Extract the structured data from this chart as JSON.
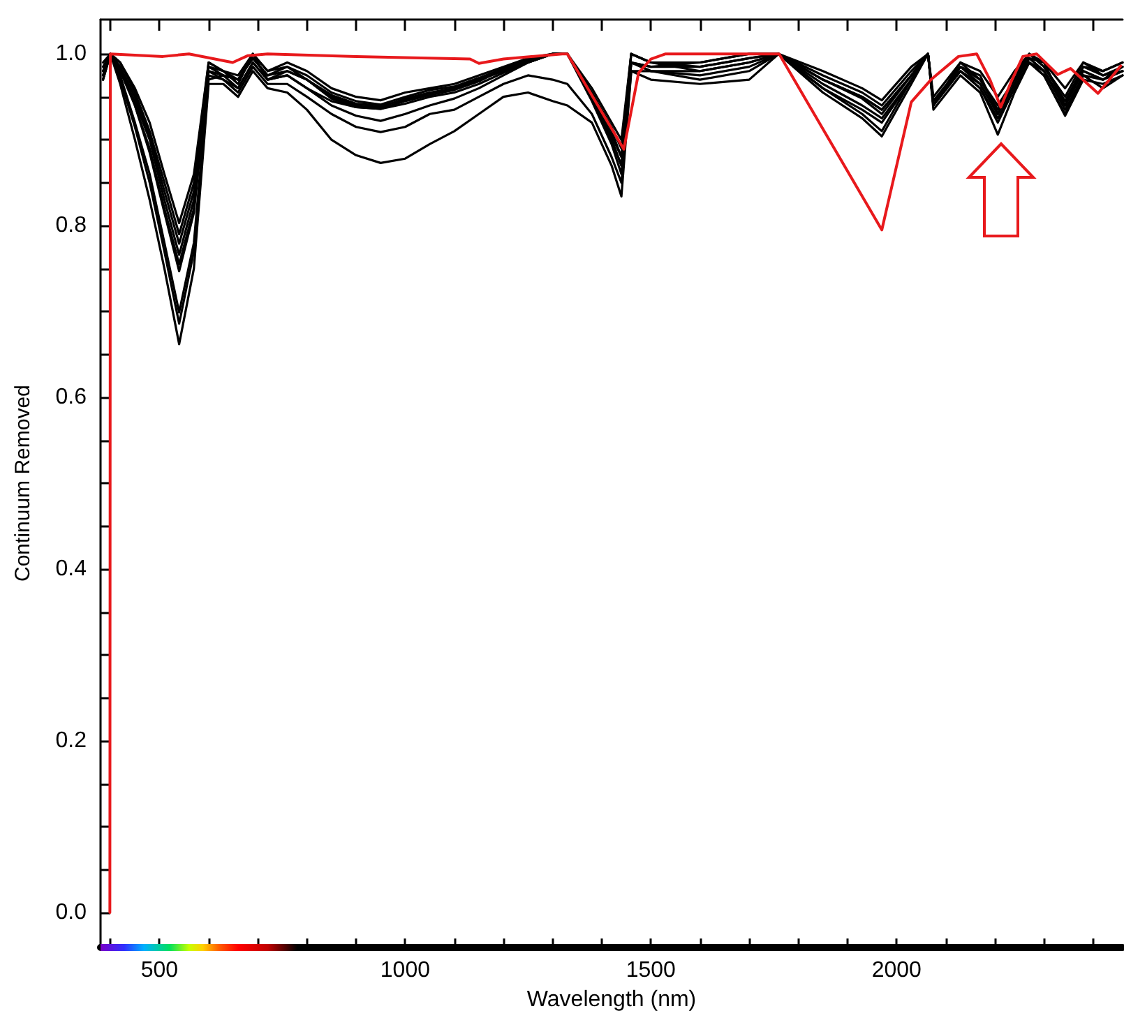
{
  "chart_data": {
    "type": "line",
    "xlabel": "Wavelength (nm)",
    "ylabel": "Continuum Removed",
    "x": [
      385,
      400,
      420,
      450,
      480,
      510,
      540,
      570,
      600,
      630,
      660,
      690,
      720,
      760,
      800,
      850,
      900,
      950,
      1000,
      1050,
      1100,
      1150,
      1200,
      1250,
      1300,
      1330,
      1380,
      1420,
      1440,
      1460,
      1500,
      1600,
      1700,
      1760,
      1850,
      1930,
      1970,
      2030,
      2064,
      2075,
      2130,
      2170,
      2206,
      2240,
      2270,
      2300,
      2343,
      2380,
      2420,
      2460
    ],
    "series": [
      {
        "color": "#000000",
        "values": [
          0.98,
          1.0,
          0.99,
          0.96,
          0.92,
          0.86,
          0.803,
          0.86,
          0.99,
          0.98,
          0.97,
          1.0,
          0.98,
          0.99,
          0.98,
          0.96,
          0.95,
          0.946,
          0.955,
          0.96,
          0.965,
          0.975,
          0.985,
          0.995,
          1.0,
          1.0,
          0.96,
          0.92,
          0.9,
          1.0,
          0.99,
          0.99,
          1.0,
          1.0,
          0.98,
          0.96,
          0.946,
          0.985,
          1.0,
          0.95,
          0.99,
          0.98,
          0.95,
          0.98,
          1.0,
          0.99,
          0.96,
          0.99,
          0.98,
          0.99
        ]
      },
      {
        "color": "#000000",
        "values": [
          0.97,
          1.0,
          0.99,
          0.955,
          0.91,
          0.85,
          0.79,
          0.85,
          0.99,
          0.98,
          0.975,
          1.0,
          0.98,
          0.985,
          0.975,
          0.955,
          0.945,
          0.941,
          0.95,
          0.958,
          0.962,
          0.972,
          0.983,
          0.994,
          1.0,
          1.0,
          0.955,
          0.91,
          0.88,
          1.0,
          0.99,
          0.985,
          0.995,
          1.0,
          0.975,
          0.955,
          0.94,
          0.98,
          1.0,
          0.945,
          0.985,
          0.975,
          0.93,
          0.975,
          1.0,
          0.985,
          0.95,
          0.99,
          0.975,
          0.985
        ]
      },
      {
        "color": "#000000",
        "values": [
          0.99,
          1.0,
          0.985,
          0.95,
          0.905,
          0.84,
          0.779,
          0.84,
          0.985,
          0.975,
          0.97,
          0.995,
          0.975,
          0.985,
          0.97,
          0.95,
          0.94,
          0.938,
          0.948,
          0.955,
          0.96,
          0.97,
          0.98,
          0.993,
          1.0,
          1.0,
          0.95,
          0.9,
          0.87,
          0.99,
          0.985,
          0.99,
          1.0,
          1.0,
          0.97,
          0.95,
          0.935,
          0.975,
          1.0,
          0.94,
          0.99,
          0.97,
          0.94,
          0.97,
          0.995,
          0.99,
          0.94,
          0.985,
          0.98,
          0.99
        ]
      },
      {
        "color": "#000000",
        "values": [
          0.975,
          1.0,
          0.98,
          0.945,
          0.9,
          0.83,
          0.766,
          0.83,
          0.985,
          0.98,
          0.965,
          1.0,
          0.97,
          0.98,
          0.97,
          0.948,
          0.938,
          0.936,
          0.945,
          0.952,
          0.958,
          0.968,
          0.982,
          0.992,
          1.0,
          1.0,
          0.955,
          0.915,
          0.89,
          1.0,
          0.99,
          0.98,
          0.99,
          1.0,
          0.97,
          0.948,
          0.93,
          0.975,
          1.0,
          0.94,
          0.985,
          0.97,
          0.935,
          0.97,
          1.0,
          0.985,
          0.945,
          0.985,
          0.975,
          0.98
        ]
      },
      {
        "color": "#000000",
        "values": [
          0.985,
          1.0,
          0.985,
          0.94,
          0.89,
          0.82,
          0.755,
          0.82,
          0.98,
          0.975,
          0.97,
          0.995,
          0.975,
          0.98,
          0.97,
          0.952,
          0.942,
          0.94,
          0.946,
          0.954,
          0.96,
          0.97,
          0.98,
          0.99,
          1.0,
          1.0,
          0.945,
          0.895,
          0.86,
          0.99,
          0.985,
          0.985,
          0.995,
          1.0,
          0.965,
          0.94,
          0.925,
          0.97,
          1.0,
          0.945,
          0.98,
          0.965,
          0.93,
          0.965,
          0.995,
          0.98,
          0.94,
          0.98,
          0.97,
          0.985
        ]
      },
      {
        "color": "#000000",
        "values": [
          0.97,
          1.0,
          0.98,
          0.94,
          0.885,
          0.815,
          0.747,
          0.815,
          0.98,
          0.97,
          0.96,
          0.99,
          0.97,
          0.975,
          0.96,
          0.94,
          0.928,
          0.922,
          0.93,
          0.94,
          0.948,
          0.96,
          0.975,
          0.99,
          1.0,
          1.0,
          0.95,
          0.905,
          0.88,
          0.99,
          0.98,
          0.975,
          0.985,
          1.0,
          0.96,
          0.93,
          0.91,
          0.97,
          1.0,
          0.94,
          0.98,
          0.96,
          0.925,
          0.96,
          0.99,
          0.98,
          0.935,
          0.975,
          0.97,
          0.98
        ]
      },
      {
        "color": "#000000",
        "values": [
          0.98,
          1.0,
          0.975,
          0.92,
          0.86,
          0.78,
          0.699,
          0.78,
          0.975,
          0.97,
          0.955,
          0.985,
          0.965,
          0.965,
          0.95,
          0.93,
          0.915,
          0.909,
          0.915,
          0.93,
          0.935,
          0.95,
          0.965,
          0.975,
          0.97,
          0.965,
          0.93,
          0.88,
          0.85,
          0.98,
          0.98,
          0.97,
          0.98,
          1.0,
          0.955,
          0.925,
          0.904,
          0.965,
          1.0,
          0.935,
          0.975,
          0.955,
          0.906,
          0.955,
          0.99,
          0.975,
          0.928,
          0.97,
          0.965,
          0.975
        ]
      },
      {
        "color": "#000000",
        "values": [
          0.975,
          1.0,
          0.97,
          0.915,
          0.85,
          0.77,
          0.686,
          0.77,
          0.97,
          0.975,
          0.96,
          0.99,
          0.97,
          0.975,
          0.96,
          0.945,
          0.938,
          0.936,
          0.942,
          0.95,
          0.955,
          0.965,
          0.978,
          0.99,
          1.0,
          1.0,
          0.95,
          0.9,
          0.87,
          0.99,
          0.98,
          0.98,
          0.99,
          1.0,
          0.97,
          0.95,
          0.935,
          0.975,
          1.0,
          0.945,
          0.985,
          0.965,
          0.93,
          0.965,
          0.995,
          0.98,
          0.94,
          0.98,
          0.97,
          0.98
        ]
      },
      {
        "color": "#000000",
        "values": [
          0.97,
          1.0,
          0.965,
          0.9,
          0.83,
          0.75,
          0.662,
          0.75,
          0.965,
          0.965,
          0.95,
          0.98,
          0.96,
          0.955,
          0.935,
          0.9,
          0.882,
          0.873,
          0.878,
          0.895,
          0.91,
          0.93,
          0.95,
          0.955,
          0.945,
          0.94,
          0.92,
          0.87,
          0.834,
          0.98,
          0.97,
          0.965,
          0.97,
          1.0,
          0.96,
          0.935,
          0.92,
          0.97,
          1.0,
          0.94,
          0.98,
          0.96,
          0.92,
          0.96,
          0.99,
          0.975,
          0.93,
          0.975,
          0.96,
          0.975
        ]
      },
      {
        "color": "#e8191c",
        "x": [
          399,
          400,
          507,
          560,
          649,
          680,
          720,
          900,
          1132,
          1150,
          1200,
          1320,
          1330,
          1445,
          1475,
          1500,
          1530,
          1600,
          1761,
          1970,
          2030,
          2070,
          2126,
          2163,
          2190,
          2212,
          2235,
          2257,
          2285,
          2328,
          2354,
          2410,
          2456
        ],
        "values": [
          0,
          1.0,
          0.997,
          1.0,
          0.99,
          0.998,
          1.0,
          0.997,
          0.994,
          0.989,
          0.994,
          1.0,
          1.0,
          0.889,
          0.978,
          0.994,
          1.0,
          1.0,
          1.0,
          0.795,
          0.944,
          0.97,
          0.997,
          1.0,
          0.97,
          0.938,
          0.97,
          0.997,
          1.0,
          0.976,
          0.983,
          0.954,
          0.986
        ]
      }
    ],
    "xlim": [
      380,
      2460
    ],
    "xticks": [
      {
        "value": 400,
        "label": null
      },
      500,
      {
        "value": 600,
        "label": null
      },
      {
        "value": 700,
        "label": null
      },
      {
        "value": 800,
        "label": null
      },
      {
        "value": 900,
        "label": null
      },
      1000,
      {
        "value": 1100,
        "label": null
      },
      {
        "value": 1200,
        "label": null
      },
      {
        "value": 1300,
        "label": null
      },
      {
        "value": 1400,
        "label": null
      },
      1500,
      {
        "value": 1600,
        "label": null
      },
      {
        "value": 1700,
        "label": null
      },
      {
        "value": 1800,
        "label": null
      },
      {
        "value": 1900,
        "label": null
      },
      2000,
      {
        "value": 2100,
        "label": null
      },
      {
        "value": 2200,
        "label": null
      },
      {
        "value": 2300,
        "label": null
      },
      {
        "value": 2400,
        "label": null
      }
    ],
    "ylim": [
      -0.04,
      1.04
    ],
    "yticks": [
      {
        "value": 0,
        "label": "0.0"
      },
      {
        "value": 0.05,
        "label": null
      },
      {
        "value": 0.1,
        "label": null
      },
      {
        "value": 0.15,
        "label": null
      },
      {
        "value": 0.2,
        "label": "0.2"
      },
      {
        "value": 0.25,
        "label": null
      },
      {
        "value": 0.3,
        "label": null
      },
      {
        "value": 0.35,
        "label": null
      },
      {
        "value": 0.4,
        "label": "0.4"
      },
      {
        "value": 0.45,
        "label": null
      },
      {
        "value": 0.5,
        "label": null
      },
      {
        "value": 0.55,
        "label": null
      },
      {
        "value": 0.6,
        "label": "0.6"
      },
      {
        "value": 0.65,
        "label": null
      },
      {
        "value": 0.7,
        "label": null
      },
      {
        "value": 0.75,
        "label": null
      },
      {
        "value": 0.8,
        "label": "0.8"
      },
      {
        "value": 0.85,
        "label": null
      },
      {
        "value": 0.9,
        "label": null
      },
      {
        "value": 0.95,
        "label": null
      },
      {
        "value": 1.0,
        "label": "1.0"
      }
    ],
    "grid": false,
    "marker": "none",
    "line_style": "solid"
  }
}
